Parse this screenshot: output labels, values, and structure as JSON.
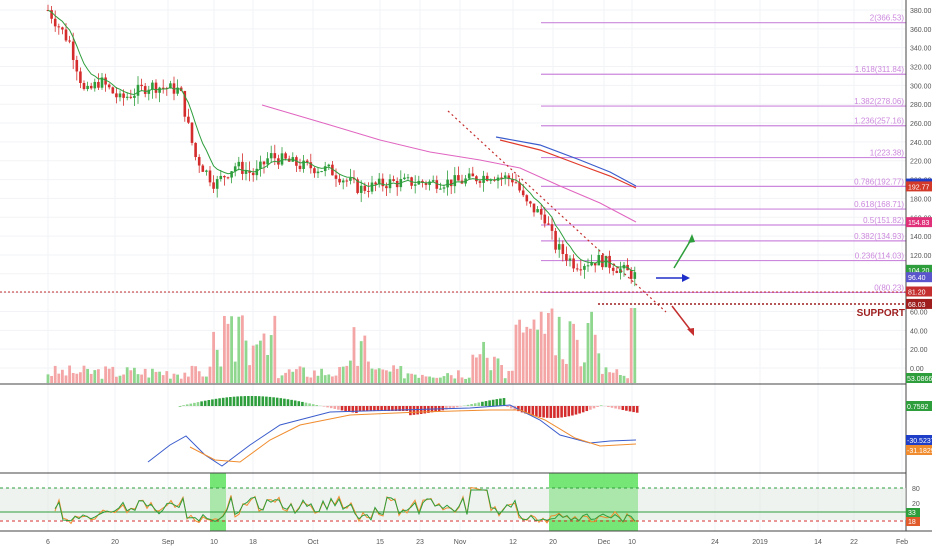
{
  "chart_data": {
    "type": "candlestick",
    "price_axis": {
      "ticks": [
        "380.00",
        "360.00",
        "340.00",
        "320.00",
        "300.00",
        "280.00",
        "260.00",
        "240.00",
        "220.00",
        "200.00",
        "180.00",
        "160.00",
        "140.00",
        "120.00",
        "100.00",
        "80.00",
        "60.00",
        "40.00",
        "20.00",
        "0.00"
      ],
      "ylim": [
        0,
        390
      ]
    },
    "x_axis": {
      "labels": [
        "6",
        "20",
        "Sep",
        "10",
        "18",
        "Oct",
        "15",
        "23",
        "Nov",
        "12",
        "20",
        "Dec",
        "10",
        "24",
        "2019",
        "14",
        "22",
        "Feb"
      ]
    },
    "fib_levels": [
      {
        "level": "2",
        "price": 366.53,
        "label": "2(366.53)"
      },
      {
        "level": "1.618",
        "price": 311.84,
        "label": "1.618(311.84)"
      },
      {
        "level": "1.382",
        "price": 278.06,
        "label": "1.382(278.06)"
      },
      {
        "level": "1.236",
        "price": 257.16,
        "label": "1.236(257.16)"
      },
      {
        "level": "1",
        "price": 223.38,
        "label": "1(223.38)"
      },
      {
        "level": "0.786",
        "price": 192.77,
        "label": "0.786(192.77)"
      },
      {
        "level": "0.618",
        "price": 168.71,
        "label": "0.618(168.71)"
      },
      {
        "level": "0.5",
        "price": 151.82,
        "label": "0.5(151.82)"
      },
      {
        "level": "0.382",
        "price": 134.93,
        "label": "0.382(134.93)"
      },
      {
        "level": "0.236",
        "price": 114.03,
        "label": "0.236(114.03)"
      },
      {
        "level": "0",
        "price": 80.23,
        "label": "0(80.23)"
      }
    ],
    "price_badges": [
      {
        "text": "195.76",
        "price": 195.76,
        "color": "#1e3ec8"
      },
      {
        "text": "192.77",
        "price": 192.77,
        "color": "#d43a2a"
      },
      {
        "text": "154.83",
        "price": 154.83,
        "color": "#e0307a"
      },
      {
        "text": "104.20",
        "price": 104.2,
        "color": "#2e9e3c"
      },
      {
        "text": "96.40",
        "price": 96.4,
        "color": "#5a55cc"
      },
      {
        "text": "81.20",
        "price": 81.2,
        "color": "#c42e2e"
      },
      {
        "text": "68.03",
        "price": 68.03,
        "color": "#9e1e1e"
      }
    ],
    "support": {
      "label": "SUPPORT",
      "price": 68.03
    },
    "volume_badge": "53.0866",
    "macd": {
      "badges": [
        {
          "text": "0.7592",
          "color": "#2e9e3c"
        },
        {
          "text": "-30.5237",
          "color": "#1e3ec8"
        },
        {
          "text": "-31.1829",
          "color": "#f08c2e"
        }
      ]
    },
    "rsi": {
      "ticks": [
        "80",
        "20"
      ],
      "badges": [
        {
          "text": "33",
          "color": "#2e9e3c"
        },
        {
          "text": "18",
          "color": "#e05a2a"
        }
      ]
    },
    "colors": {
      "up": "#2e9e3c",
      "down": "#d42c2c",
      "vol_up": "#8fd68f",
      "vol_down": "#f4a6a6",
      "ema_fast": "#2e9e3c",
      "ema_slow": "#e065c0",
      "ma_blue": "#3a5ccc",
      "ma_red": "#e03a2a",
      "fib": "#cc88dd",
      "highlight": "#5ee35e"
    }
  }
}
